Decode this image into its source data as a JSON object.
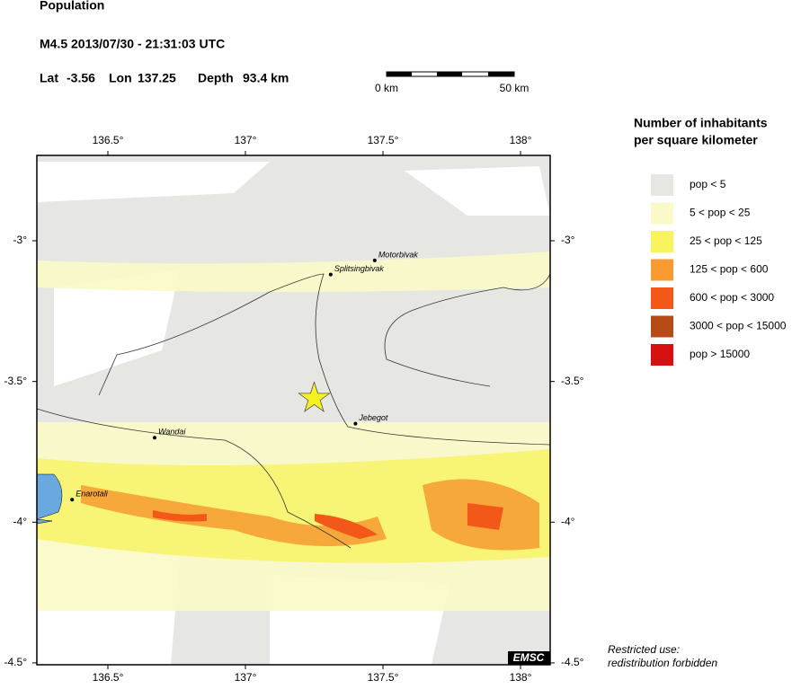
{
  "header": {
    "title": "Population",
    "event": "M4.5  2013/07/30 - 21:31:03 UTC",
    "lat_label": "Lat",
    "lat": -3.56,
    "lon_label": "Lon",
    "lon": 137.25,
    "depth_label": "Depth",
    "depth": "93.4 km"
  },
  "scale": {
    "start": "0 km",
    "end": "50 km"
  },
  "map": {
    "lon_ticks": [
      {
        "value": 136.5,
        "label": "136.5°"
      },
      {
        "value": 137,
        "label": "137°"
      },
      {
        "value": 137.5,
        "label": "137.5°"
      },
      {
        "value": 138,
        "label": "138°"
      }
    ],
    "lat_ticks": [
      {
        "value": -3,
        "label": "-3°"
      },
      {
        "value": -3.5,
        "label": "-3.5°"
      },
      {
        "value": -4,
        "label": "-4°"
      },
      {
        "value": -4.5,
        "label": "-4.5°"
      }
    ],
    "cities": [
      {
        "name": "Motorbivak",
        "lon": 137.47,
        "lat": -3.07
      },
      {
        "name": "Splitsingbivak",
        "lon": 137.31,
        "lat": -3.12
      },
      {
        "name": "Jebegot",
        "lon": 137.4,
        "lat": -3.65
      },
      {
        "name": "Wandai",
        "lon": 136.67,
        "lat": -3.7
      },
      {
        "name": "Enarotali",
        "lon": 136.37,
        "lat": -3.92
      }
    ],
    "logo": "EMSC"
  },
  "legend": {
    "title": [
      "Number of inhabitants",
      "per square kilometer"
    ],
    "items": [
      {
        "label": "pop < 5",
        "color": "#e6e6e2"
      },
      {
        "label": "5 < pop < 25",
        "color": "#fafac8"
      },
      {
        "label": "25 < pop < 125",
        "color": "#f8f460"
      },
      {
        "label": "125 < pop < 600",
        "color": "#f79a30"
      },
      {
        "label": "600 < pop < 3000",
        "color": "#f25818"
      },
      {
        "label": "3000 < pop < 15000",
        "color": "#b84a18"
      },
      {
        "label": "pop > 15000",
        "color": "#d41010"
      }
    ]
  },
  "note": [
    "Restricted use:",
    "redistribution forbidden"
  ]
}
